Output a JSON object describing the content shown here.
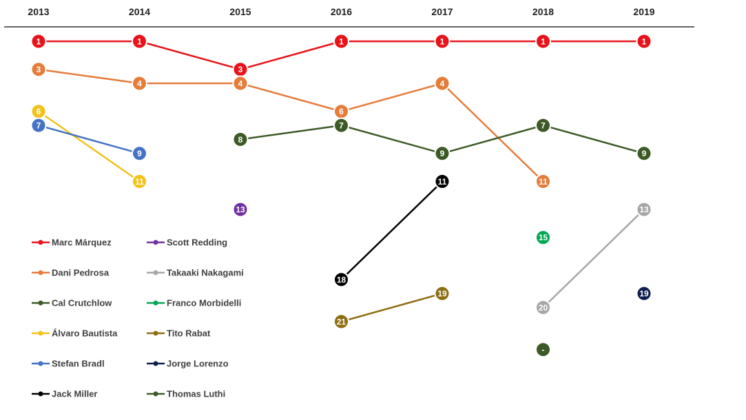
{
  "chart_data": {
    "type": "line",
    "x": [
      "2013",
      "2014",
      "2015",
      "2016",
      "2017",
      "2018",
      "2019"
    ],
    "y_inverted": true,
    "ylim": [
      1,
      23
    ],
    "grid": false,
    "legend_position": "bottom-left",
    "series": [
      {
        "name": "Marc Márquez",
        "color": "#e8121a",
        "points": [
          {
            "x": "2013",
            "y": 1
          },
          {
            "x": "2014",
            "y": 1
          },
          {
            "x": "2015",
            "y": 3
          },
          {
            "x": "2016",
            "y": 1
          },
          {
            "x": "2017",
            "y": 1
          },
          {
            "x": "2018",
            "y": 1
          },
          {
            "x": "2019",
            "y": 1
          }
        ]
      },
      {
        "name": "Dani Pedrosa",
        "color": "#e57c3a",
        "points": [
          {
            "x": "2013",
            "y": 3
          },
          {
            "x": "2014",
            "y": 4
          },
          {
            "x": "2015",
            "y": 4
          },
          {
            "x": "2016",
            "y": 6
          },
          {
            "x": "2017",
            "y": 4
          },
          {
            "x": "2018",
            "y": 11
          }
        ]
      },
      {
        "name": "Cal Crutchlow",
        "color": "#3b5a26",
        "points": [
          {
            "x": "2015",
            "y": 8
          },
          {
            "x": "2016",
            "y": 7
          },
          {
            "x": "2017",
            "y": 9
          },
          {
            "x": "2018",
            "y": 7
          },
          {
            "x": "2019",
            "y": 9
          }
        ]
      },
      {
        "name": "Álvaro Bautista",
        "color": "#f2c21a",
        "points": [
          {
            "x": "2013",
            "y": 6
          },
          {
            "x": "2014",
            "y": 11
          }
        ]
      },
      {
        "name": "Stefan Bradl",
        "color": "#4472c4",
        "points": [
          {
            "x": "2013",
            "y": 7
          },
          {
            "x": "2014",
            "y": 9
          }
        ]
      },
      {
        "name": "Jack Miller",
        "color": "#000000",
        "points": [
          {
            "x": "2016",
            "y": 18
          },
          {
            "x": "2017",
            "y": 11
          }
        ]
      },
      {
        "name": "Scott Redding",
        "color": "#7030a0",
        "points": [
          {
            "x": "2015",
            "y": 13
          }
        ]
      },
      {
        "name": "Takaaki Nakagami",
        "color": "#a6a6a6",
        "points": [
          {
            "x": "2018",
            "y": 20
          },
          {
            "x": "2019",
            "y": 13
          }
        ]
      },
      {
        "name": "Franco Morbidelli",
        "color": "#00a650",
        "points": [
          {
            "x": "2018",
            "y": 15
          }
        ]
      },
      {
        "name": "Tito Rabat",
        "color": "#8c6d12",
        "points": [
          {
            "x": "2016",
            "y": 21
          },
          {
            "x": "2017",
            "y": 19
          }
        ]
      },
      {
        "name": "Jorge Lorenzo",
        "color": "#0d1f4f",
        "points": [
          {
            "x": "2019",
            "y": 19
          }
        ]
      },
      {
        "name": "Thomas Luthi",
        "color": "#3b5a26",
        "points": [
          {
            "x": "2018",
            "y": 23,
            "label": "-"
          }
        ]
      }
    ]
  }
}
